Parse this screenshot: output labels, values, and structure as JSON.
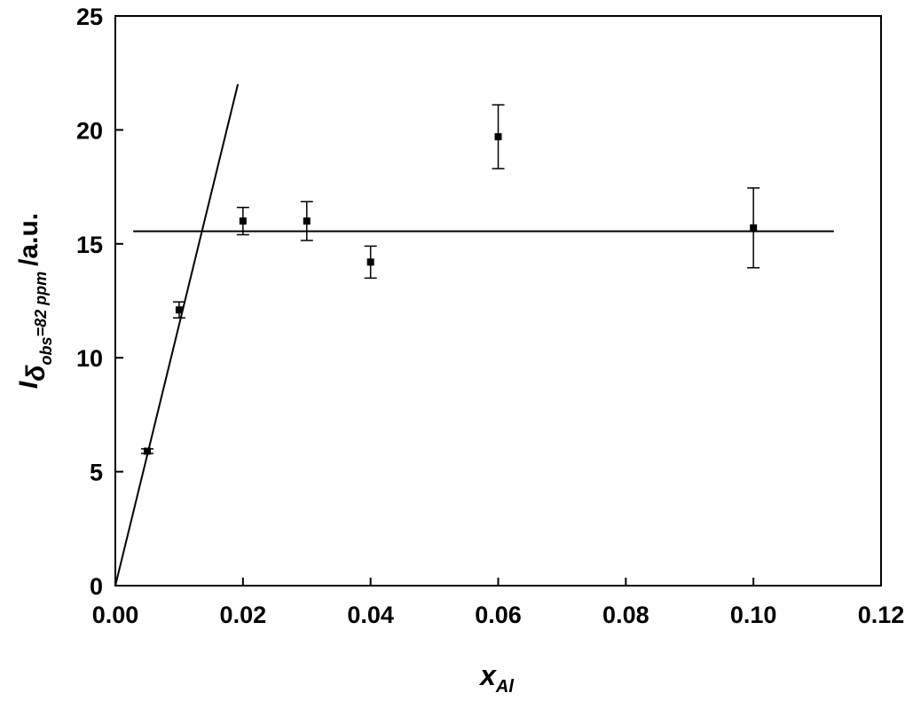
{
  "chart_data": {
    "type": "scatter",
    "x_label": {
      "main": "x",
      "sub": "Al"
    },
    "y_label": {
      "main": "I",
      "sub": "δ",
      "subsub": "obs",
      "tail": "=82 ppm",
      "unit": "/a.u."
    },
    "series": [
      {
        "color": "#000000",
        "x": [
          0.005,
          0.01,
          0.02,
          0.03,
          0.04,
          0.06,
          0.1
        ],
        "values": [
          5.9,
          12.1,
          16.0,
          16.0,
          14.2,
          19.7,
          15.7
        ],
        "errors": [
          0.1,
          0.35,
          0.6,
          0.85,
          0.7,
          1.4,
          1.75
        ]
      }
    ],
    "lines": [
      {
        "color": "#000000",
        "x": [
          0,
          0.0192
        ],
        "values": [
          0,
          22.0
        ]
      },
      {
        "color": "#000000",
        "x": [
          0.0028,
          0.1126
        ],
        "values": [
          15.55,
          15.55
        ]
      }
    ],
    "xlim": [
      0,
      0.12
    ],
    "xticks": [
      {
        "value": 0,
        "label": "0.00"
      },
      {
        "value": 0.02,
        "label": "0.02"
      },
      {
        "value": 0.04,
        "label": "0.04"
      },
      {
        "value": 0.06,
        "label": "0.06"
      },
      {
        "value": 0.08,
        "label": "0.08"
      },
      {
        "value": 0.1,
        "label": "0.10"
      },
      {
        "value": 0.12,
        "label": "0.12"
      }
    ],
    "ylim": [
      0,
      25
    ],
    "yticks": [
      0,
      5,
      10,
      15,
      20,
      25
    ]
  }
}
